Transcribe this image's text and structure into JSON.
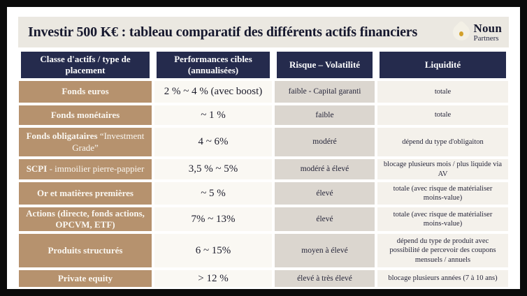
{
  "title_bar": {
    "title": "Investir 500 K€ : tableau comparatif des différents actifs financiers",
    "logo": {
      "name": "Noun",
      "tagline": "Partners"
    }
  },
  "colors": {
    "frame_border": "#0b0b0b",
    "title_bar_bg": "#ebe8e1",
    "header_bg": "#252b4d",
    "asset_column_bg": "#b6926e",
    "performance_column_bg": "#faf8f3",
    "risk_column_bg": "#dbd6cf",
    "liquidity_column_bg": "#f4f1eb",
    "logo_gold": "#d2a02a"
  },
  "table": {
    "headers": [
      "Classe d'actifs / type de placement",
      "Performances cibles (annualisées)",
      "Risque – Volatilité",
      "Liquidité"
    ],
    "rows": [
      {
        "asset": "Fonds euros",
        "asset_suffix": "",
        "performance": "2 % ~ 4 % (avec boost)",
        "risk": "faible - Capital garanti",
        "liquidity": "totale"
      },
      {
        "asset": "Fonds monétaires",
        "asset_suffix": "",
        "performance": "~ 1 %",
        "risk": "faible",
        "liquidity": "totale"
      },
      {
        "asset": "Fonds obligataires",
        "asset_suffix": " “Investment Grade”",
        "performance": "4 ~ 6%",
        "risk": "modéré",
        "liquidity": "dépend du type d'obligaiton"
      },
      {
        "asset": "SCPI",
        "asset_suffix": " - immoilier pierre-pappier",
        "performance": "3,5 % ~ 5%",
        "risk": "modéré à élevé",
        "liquidity": "blocage plusieurs mois / plus liquide via AV"
      },
      {
        "asset": "Or et matières premières",
        "asset_suffix": "",
        "performance": "~ 5 %",
        "risk": "élevé",
        "liquidity": "totale (avec risque de matérialiser moins-value)"
      },
      {
        "asset": "Actions (directe, fonds actions, OPCVM, ETF)",
        "asset_suffix": "",
        "performance": "7% ~ 13%",
        "risk": "élevé",
        "liquidity": "totale (avec risque de matérialiser moins-value)"
      },
      {
        "asset": "Produits structurés",
        "asset_suffix": "",
        "performance": "6 ~ 15%",
        "risk": "moyen à élevé",
        "liquidity": "dépend du type de produit avec possibilité de percevoir des coupons mensuels / annuels"
      },
      {
        "asset": "Private equity",
        "asset_suffix": "",
        "performance": "> 12 %",
        "risk": "élevé à très élevé",
        "liquidity": "blocage plusieurs années (7 à 10 ans)"
      }
    ]
  }
}
